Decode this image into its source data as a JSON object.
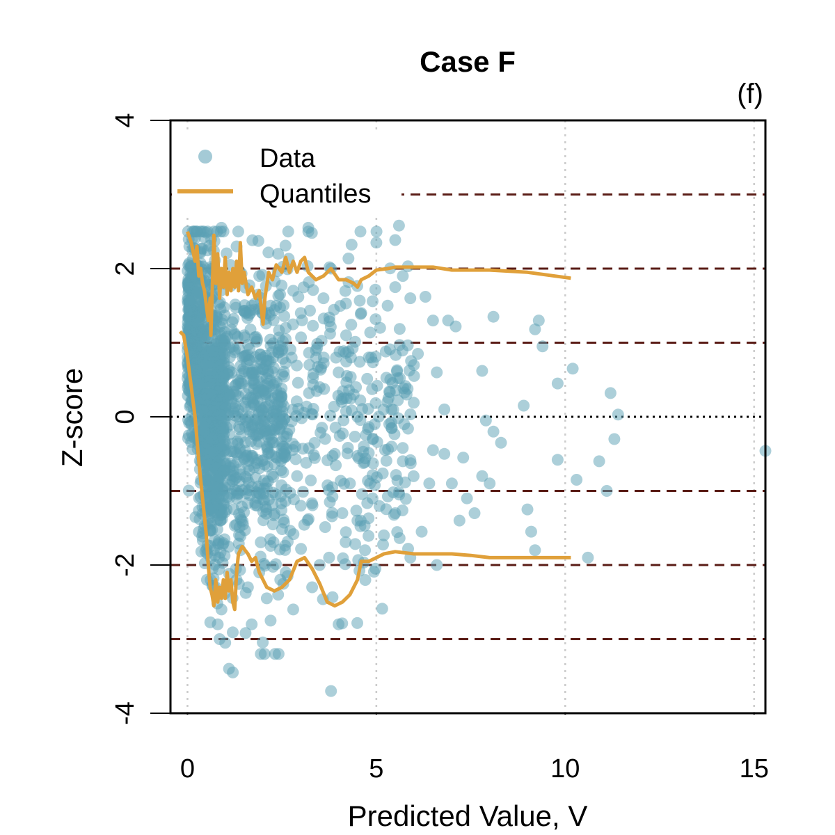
{
  "chart_data": {
    "type": "scatter",
    "title": "Case F",
    "panel_label": "(f)",
    "xlabel": "Predicted Value, V",
    "ylabel": "Z-score",
    "xlim": [
      -0.45,
      15.3
    ],
    "ylim": [
      -4,
      4
    ],
    "xticks": [
      0,
      5,
      10,
      15
    ],
    "yticks": [
      -4,
      -2,
      0,
      2,
      4
    ],
    "xtick_labels": [
      "0",
      "5",
      "10",
      "15"
    ],
    "ytick_labels": [
      "-4",
      "-2",
      "0",
      "2",
      "4"
    ],
    "grid": "vertical dotted lines at x ticks",
    "legend_position": "top-left",
    "colors": {
      "data": "#5a9fb4",
      "quantiles": "#e0a03a",
      "dashed_reference": "#5a1c16",
      "zero_line": "#000000",
      "grid": "#cccccc"
    },
    "reference_lines": {
      "dotted_zero": 0,
      "dashed": [
        -3,
        -2,
        -1,
        1,
        2,
        3
      ]
    },
    "series": [
      {
        "name": "Data",
        "kind": "points",
        "points": [
          [
            0.05,
            2.3
          ],
          [
            0.1,
            1.9
          ],
          [
            0.2,
            1.4
          ],
          [
            0.3,
            1.1
          ],
          [
            0.35,
            0.6
          ],
          [
            0.45,
            0.1
          ],
          [
            0.55,
            -0.5
          ],
          [
            0.6,
            -1.2
          ],
          [
            0.7,
            -1.8
          ],
          [
            0.75,
            -2.3
          ],
          [
            0.8,
            -2.8
          ],
          [
            0.85,
            -3.0
          ],
          [
            0.9,
            -2.6
          ],
          [
            1.0,
            -3.05
          ],
          [
            1.1,
            -3.4
          ],
          [
            1.2,
            -3.45
          ],
          [
            1.3,
            -2.2
          ],
          [
            1.4,
            -1.8
          ],
          [
            1.6,
            -2.3
          ],
          [
            1.7,
            -2.8
          ],
          [
            1.9,
            -2.1
          ],
          [
            2.1,
            -2.45
          ],
          [
            2.2,
            -2.75
          ],
          [
            2.4,
            -2.4
          ],
          [
            2.6,
            -2.1
          ],
          [
            2.8,
            -2.6
          ],
          [
            3.0,
            -1.2
          ],
          [
            3.3,
            -2.3
          ],
          [
            3.5,
            -2.0
          ],
          [
            3.8,
            -3.7
          ],
          [
            4.0,
            -2.8
          ],
          [
            4.1,
            -1.3
          ],
          [
            4.3,
            -0.9
          ],
          [
            4.5,
            -1.4
          ],
          [
            4.7,
            -1.8
          ],
          [
            4.9,
            -1.1
          ],
          [
            5.2,
            -1.6
          ],
          [
            5.5,
            -1.3
          ],
          [
            5.7,
            -0.6
          ],
          [
            5.9,
            -1.9
          ],
          [
            6.2,
            -1.55
          ],
          [
            6.4,
            -0.9
          ],
          [
            6.6,
            -2.0
          ],
          [
            6.8,
            -0.5
          ],
          [
            7.0,
            -0.9
          ],
          [
            7.2,
            -1.4
          ],
          [
            7.4,
            -1.1
          ],
          [
            7.6,
            -1.3
          ],
          [
            7.8,
            -0.8
          ],
          [
            8.0,
            -0.9
          ],
          [
            8.3,
            -0.35
          ],
          [
            9.0,
            -1.25
          ],
          [
            9.1,
            -1.55
          ],
          [
            9.2,
            -1.8
          ],
          [
            9.8,
            -0.58
          ],
          [
            10.3,
            -0.85
          ],
          [
            10.6,
            -1.9
          ],
          [
            10.9,
            -0.6
          ],
          [
            11.1,
            -1.0
          ],
          [
            11.3,
            -0.3
          ],
          [
            11.4,
            0.03
          ],
          [
            11.2,
            0.32
          ],
          [
            15.3,
            -0.46
          ],
          [
            10.2,
            0.65
          ],
          [
            9.8,
            0.45
          ],
          [
            9.3,
            1.3
          ],
          [
            9.2,
            1.18
          ],
          [
            9.4,
            0.95
          ],
          [
            8.9,
            0.15
          ],
          [
            8.1,
            1.35
          ],
          [
            7.8,
            0.62
          ],
          [
            7.1,
            1.22
          ],
          [
            6.9,
            1.3
          ],
          [
            6.6,
            0.6
          ],
          [
            6.5,
            1.3
          ],
          [
            6.3,
            1.62
          ],
          [
            6.1,
            0.85
          ],
          [
            5.9,
            1.6
          ],
          [
            5.7,
            1.9
          ],
          [
            5.5,
            1.75
          ],
          [
            5.3,
            1.5
          ],
          [
            5.1,
            1.2
          ],
          [
            5.0,
            2.35
          ],
          [
            4.8,
            0.8
          ],
          [
            4.6,
            1.4
          ],
          [
            4.4,
            0.3
          ],
          [
            4.2,
            1.1
          ],
          [
            4.0,
            0.6
          ],
          [
            3.8,
            2.0
          ],
          [
            3.6,
            1.6
          ],
          [
            3.4,
            0.9
          ],
          [
            3.2,
            2.5
          ],
          [
            3.0,
            1.4
          ],
          [
            2.8,
            1.7
          ],
          [
            2.6,
            1.2
          ],
          [
            2.4,
            2.2
          ],
          [
            2.2,
            1.5
          ],
          [
            2.0,
            0.8
          ],
          [
            1.9,
            1.9
          ],
          [
            1.7,
            1.5
          ],
          [
            1.5,
            1.1
          ],
          [
            1.3,
            2.3
          ],
          [
            1.1,
            1.8
          ],
          [
            0.9,
            2.55
          ],
          [
            0.7,
            2.5
          ],
          [
            5.6,
            2.58
          ],
          [
            3.2,
            2.55
          ],
          [
            6.0,
            0.55
          ],
          [
            5.4,
            0.1
          ],
          [
            4.9,
            -0.3
          ],
          [
            6.5,
            -0.45
          ],
          [
            7.3,
            -0.55
          ],
          [
            8.1,
            -0.2
          ],
          [
            7.9,
            -0.05
          ],
          [
            6.8,
            0.1
          ],
          [
            5.8,
            0.3
          ],
          [
            4.5,
            0.0
          ],
          [
            3.9,
            -0.5
          ],
          [
            3.5,
            0.4
          ],
          [
            2.9,
            -0.8
          ],
          [
            2.5,
            0.2
          ],
          [
            2.1,
            -0.4
          ],
          [
            1.8,
            0.6
          ]
        ]
      },
      {
        "name": "Quantiles",
        "kind": "lines",
        "upper": [
          [
            0.0,
            2.5
          ],
          [
            0.1,
            2.35
          ],
          [
            0.2,
            2.1
          ],
          [
            0.25,
            2.3
          ],
          [
            0.3,
            1.9
          ],
          [
            0.35,
            2.0
          ],
          [
            0.4,
            1.8
          ],
          [
            0.45,
            1.7
          ],
          [
            0.5,
            1.5
          ],
          [
            0.55,
            1.3
          ],
          [
            0.6,
            1.6
          ],
          [
            0.62,
            1.1
          ],
          [
            0.7,
            2.45
          ],
          [
            0.75,
            1.8
          ],
          [
            0.8,
            2.2
          ],
          [
            0.85,
            1.6
          ],
          [
            0.9,
            2.0
          ],
          [
            0.95,
            1.75
          ],
          [
            1.0,
            2.15
          ],
          [
            1.05,
            1.65
          ],
          [
            1.1,
            1.95
          ],
          [
            1.15,
            1.7
          ],
          [
            1.2,
            2.0
          ],
          [
            1.25,
            1.75
          ],
          [
            1.3,
            2.1
          ],
          [
            1.35,
            1.7
          ],
          [
            1.4,
            2.35
          ],
          [
            1.45,
            1.8
          ],
          [
            1.5,
            1.95
          ],
          [
            1.6,
            1.65
          ],
          [
            1.7,
            1.75
          ],
          [
            1.8,
            1.6
          ],
          [
            1.9,
            1.7
          ],
          [
            2.0,
            1.25
          ],
          [
            2.05,
            1.6
          ],
          [
            2.15,
            1.95
          ],
          [
            2.25,
            1.85
          ],
          [
            2.35,
            2.05
          ],
          [
            2.5,
            1.95
          ],
          [
            2.6,
            2.15
          ],
          [
            2.7,
            1.95
          ],
          [
            2.8,
            2.1
          ],
          [
            2.9,
            1.95
          ],
          [
            3.0,
            2.1
          ],
          [
            3.1,
            2.15
          ],
          [
            3.2,
            1.95
          ],
          [
            3.4,
            1.85
          ],
          [
            3.6,
            1.9
          ],
          [
            3.8,
            2.0
          ],
          [
            4.0,
            1.85
          ],
          [
            4.2,
            1.85
          ],
          [
            4.4,
            1.8
          ],
          [
            4.5,
            1.75
          ],
          [
            4.6,
            1.85
          ],
          [
            4.8,
            1.9
          ],
          [
            5.0,
            1.98
          ],
          [
            5.3,
            2.0
          ],
          [
            5.5,
            2.02
          ],
          [
            6.0,
            2.02
          ],
          [
            6.5,
            2.02
          ],
          [
            7.0,
            1.98
          ],
          [
            8.0,
            1.98
          ],
          [
            9.0,
            1.95
          ],
          [
            10.15,
            1.87
          ]
        ],
        "lower": [
          [
            -0.2,
            1.15
          ],
          [
            -0.1,
            1.1
          ],
          [
            0.0,
            0.8
          ],
          [
            0.1,
            0.4
          ],
          [
            0.2,
            0.0
          ],
          [
            0.3,
            -0.6
          ],
          [
            0.4,
            -1.1
          ],
          [
            0.5,
            -1.6
          ],
          [
            0.55,
            -2.0
          ],
          [
            0.6,
            -2.3
          ],
          [
            0.65,
            -2.4
          ],
          [
            0.7,
            -2.55
          ],
          [
            0.75,
            -2.2
          ],
          [
            0.8,
            -2.5
          ],
          [
            0.85,
            -2.3
          ],
          [
            0.9,
            -2.45
          ],
          [
            0.95,
            -2.2
          ],
          [
            1.0,
            -2.45
          ],
          [
            1.05,
            -2.1
          ],
          [
            1.1,
            -2.35
          ],
          [
            1.15,
            -2.2
          ],
          [
            1.2,
            -2.5
          ],
          [
            1.25,
            -2.6
          ],
          [
            1.3,
            -2.1
          ],
          [
            1.35,
            -1.85
          ],
          [
            1.45,
            -1.75
          ],
          [
            1.6,
            -1.85
          ],
          [
            1.7,
            -1.95
          ],
          [
            1.8,
            -1.9
          ],
          [
            1.9,
            -2.1
          ],
          [
            2.0,
            -2.2
          ],
          [
            2.1,
            -2.3
          ],
          [
            2.3,
            -2.35
          ],
          [
            2.5,
            -2.3
          ],
          [
            2.7,
            -2.2
          ],
          [
            2.9,
            -1.95
          ],
          [
            3.1,
            -1.9
          ],
          [
            3.3,
            -2.05
          ],
          [
            3.5,
            -2.25
          ],
          [
            3.7,
            -2.5
          ],
          [
            3.9,
            -2.55
          ],
          [
            4.1,
            -2.5
          ],
          [
            4.3,
            -2.4
          ],
          [
            4.5,
            -2.2
          ],
          [
            4.6,
            -1.95
          ],
          [
            4.8,
            -1.95
          ],
          [
            5.0,
            -1.9
          ],
          [
            5.2,
            -1.85
          ],
          [
            5.5,
            -1.82
          ],
          [
            6.0,
            -1.85
          ],
          [
            7.0,
            -1.85
          ],
          [
            7.5,
            -1.87
          ],
          [
            8.0,
            -1.9
          ],
          [
            9.0,
            -1.9
          ],
          [
            10.15,
            -1.9
          ]
        ]
      }
    ]
  }
}
